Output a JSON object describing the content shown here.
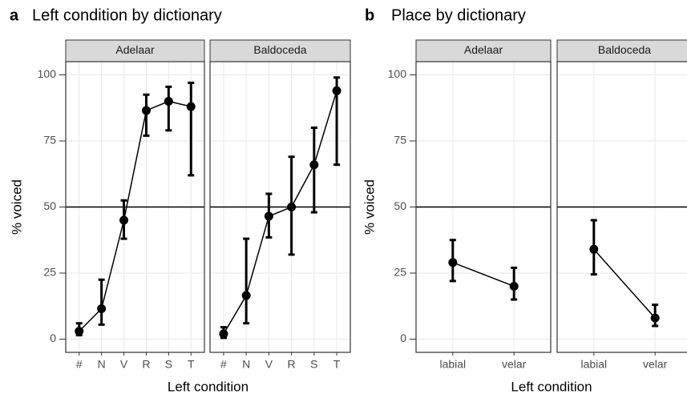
{
  "chart_data": [
    {
      "type": "line",
      "panel_label": "a",
      "title": "Left condition by dictionary",
      "xlabel": "Left condition",
      "ylabel": "% voiced",
      "ylim": [
        -5,
        105
      ],
      "yticks": [
        0,
        25,
        50,
        75,
        100
      ],
      "hline": 50,
      "grid": true,
      "color": "#000000",
      "facets": [
        {
          "name": "Adelaar",
          "categories": [
            "#",
            "N",
            "V",
            "R",
            "S",
            "T"
          ],
          "values": [
            3,
            11.5,
            45,
            86.5,
            90,
            88
          ],
          "lower": [
            1.5,
            5.5,
            38,
            77,
            79,
            62
          ],
          "upper": [
            6,
            22.5,
            52.5,
            92.5,
            95.5,
            97
          ]
        },
        {
          "name": "Baldoceda",
          "categories": [
            "#",
            "N",
            "V",
            "R",
            "S",
            "T"
          ],
          "values": [
            2,
            16.5,
            46.5,
            50,
            66,
            94
          ],
          "lower": [
            0.5,
            6,
            38.5,
            32,
            48,
            66
          ],
          "upper": [
            4.5,
            38,
            55,
            69,
            80,
            99
          ]
        }
      ]
    },
    {
      "type": "line",
      "panel_label": "b",
      "title": "Place by dictionary",
      "xlabel": "Left condition",
      "ylabel": "% voiced",
      "ylim": [
        -5,
        105
      ],
      "yticks": [
        0,
        25,
        50,
        75,
        100
      ],
      "hline": 50,
      "grid": true,
      "color": "#000000",
      "facets": [
        {
          "name": "Adelaar",
          "categories": [
            "labial",
            "velar"
          ],
          "values": [
            29,
            20
          ],
          "lower": [
            22,
            15
          ],
          "upper": [
            37.5,
            27
          ]
        },
        {
          "name": "Baldoceda",
          "categories": [
            "labial",
            "velar"
          ],
          "values": [
            34,
            8
          ],
          "lower": [
            24.5,
            5
          ],
          "upper": [
            45,
            13
          ]
        }
      ]
    }
  ]
}
